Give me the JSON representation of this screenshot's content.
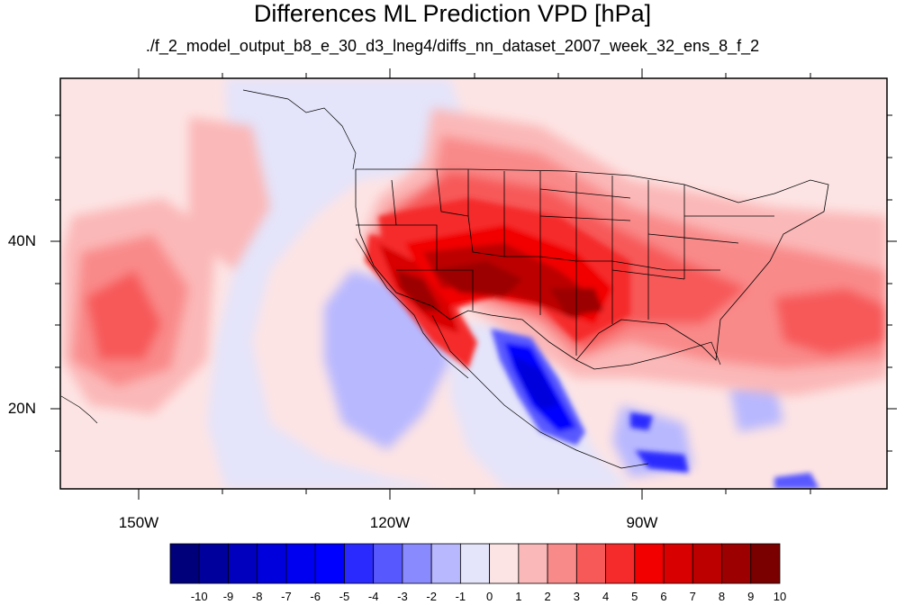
{
  "title": "Differences ML Prediction VPD [hPa]",
  "subtitle": "./f_2_model_output_b8_e_30_d3_lneg4/diffs_nn_dataset_2007_week_32_ens_8_f_2",
  "map": {
    "lat_labels": [
      "40N",
      "20N"
    ],
    "lon_labels": [
      "150W",
      "120W",
      "90W"
    ]
  },
  "colorbar": {
    "labels": [
      "-10",
      "-9",
      "-8",
      "-7",
      "-6",
      "-5",
      "-4",
      "-3",
      "-2",
      "-1",
      "0",
      "1",
      "2",
      "3",
      "4",
      "5",
      "6",
      "7",
      "8",
      "9",
      "10"
    ],
    "colors": [
      "#00007a",
      "#00009c",
      "#0000be",
      "#0000dc",
      "#0000f0",
      "#0000ff",
      "#2a2aff",
      "#5858ff",
      "#8a8aff",
      "#b8b8ff",
      "#e4e4fa",
      "#fde4e4",
      "#fbb8b8",
      "#f98a8a",
      "#f75858",
      "#f52a2a",
      "#f20000",
      "#d80000",
      "#bc0000",
      "#9c0000",
      "#7a0000"
    ]
  }
}
